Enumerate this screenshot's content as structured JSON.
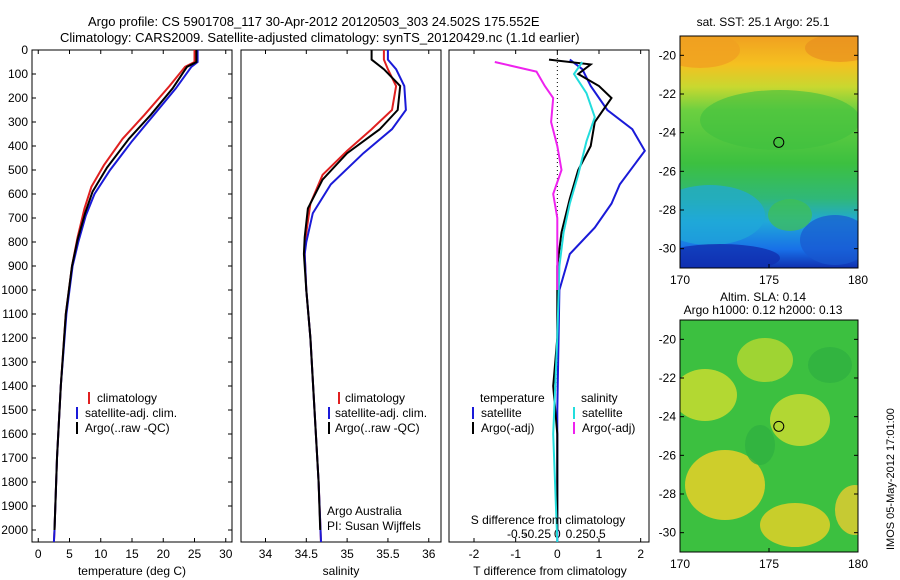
{
  "header": {
    "line1": "Argo profile: CS 5901708_117 30-Apr-2012 20120503_303 24.502S 175.552E",
    "line2": "Climatology: CARS2009. Satellite-adjusted climatology: synTS_20120429.nc (1.1d earlier)"
  },
  "side_text": "IMOS 05-May-2012 17:01:00",
  "colors": {
    "climatology": "#e02020",
    "satellite": "#1a1ad8",
    "argo": "#000000",
    "sal_sat": "#22dddd",
    "sal_argo": "#ee22ee"
  },
  "chart_data": [
    {
      "id": "temperature",
      "type": "line",
      "xlabel": "temperature (deg C)",
      "xlim": [
        -1,
        31
      ],
      "xticks": [
        "0",
        "5",
        "10",
        "15",
        "20",
        "25",
        "30"
      ],
      "xtick_values": [
        0,
        5,
        10,
        15,
        20,
        25,
        30
      ],
      "ylim": [
        0,
        2050
      ],
      "yticks": [
        "0",
        "100",
        "200",
        "300",
        "400",
        "500",
        "600",
        "700",
        "800",
        "900",
        "1000",
        "1100",
        "1200",
        "1300",
        "1400",
        "1500",
        "1600",
        "1700",
        "1800",
        "1900",
        "2000"
      ],
      "legend": [
        "climatology",
        "satellite-adj. clim.",
        "Argo(..raw -QC)"
      ],
      "series": [
        {
          "name": "climatology",
          "color": "#e02020",
          "points": [
            [
              25,
              0
            ],
            [
              25,
              50
            ],
            [
              23.5,
              70
            ],
            [
              21,
              150
            ],
            [
              17,
              270
            ],
            [
              13.5,
              370
            ],
            [
              10.5,
              480
            ],
            [
              8.5,
              570
            ],
            [
              7.4,
              660
            ],
            [
              6.3,
              780
            ],
            [
              5.4,
              900
            ],
            [
              4.4,
              1100
            ],
            [
              3.6,
              1400
            ],
            [
              3,
              1700
            ],
            [
              2.6,
              2000
            ],
            [
              2.5,
              2050
            ]
          ]
        },
        {
          "name": "satellite-adj. clim.",
          "color": "#1a1ad8",
          "points": [
            [
              25.5,
              0
            ],
            [
              25.5,
              50
            ],
            [
              24.5,
              70
            ],
            [
              22,
              160
            ],
            [
              18.5,
              270
            ],
            [
              15,
              380
            ],
            [
              11.5,
              500
            ],
            [
              9,
              600
            ],
            [
              7.6,
              690
            ],
            [
              6.4,
              800
            ],
            [
              5.5,
              900
            ],
            [
              4.5,
              1100
            ],
            [
              3.6,
              1400
            ],
            [
              3,
              1700
            ],
            [
              2.6,
              2000
            ],
            [
              2.5,
              2050
            ]
          ]
        },
        {
          "name": "Argo(..raw -QC)",
          "color": "#000000",
          "points": [
            [
              25.3,
              0
            ],
            [
              25.3,
              50
            ],
            [
              23.8,
              70
            ],
            [
              21.5,
              160
            ],
            [
              18,
              270
            ],
            [
              14.5,
              370
            ],
            [
              11,
              490
            ],
            [
              8.7,
              590
            ],
            [
              7.5,
              680
            ],
            [
              6.3,
              790
            ],
            [
              5.4,
              900
            ],
            [
              4.4,
              1100
            ],
            [
              3.6,
              1400
            ],
            [
              3,
              1700
            ],
            [
              2.6,
              2000
            ]
          ]
        }
      ]
    },
    {
      "id": "salinity",
      "type": "line",
      "xlabel": "salinity",
      "xlim": [
        33.7,
        36.15
      ],
      "xticks": [
        "34",
        "34.5",
        "35",
        "35.5",
        "36"
      ],
      "xtick_values": [
        34,
        34.5,
        35,
        35.5,
        36
      ],
      "ylim": [
        0,
        2050
      ],
      "legend": [
        "climatology",
        "satellite-adj. clim.",
        "Argo(..raw -QC)"
      ],
      "annotation": [
        "Argo Australia",
        "PI: Susan Wijffels"
      ],
      "series": [
        {
          "name": "climatology",
          "color": "#e02020",
          "points": [
            [
              35.45,
              0
            ],
            [
              35.45,
              40
            ],
            [
              35.5,
              80
            ],
            [
              35.6,
              150
            ],
            [
              35.55,
              250
            ],
            [
              35.3,
              330
            ],
            [
              35.0,
              420
            ],
            [
              34.7,
              520
            ],
            [
              34.55,
              640
            ],
            [
              34.5,
              760
            ],
            [
              34.48,
              850
            ],
            [
              34.5,
              1000
            ],
            [
              34.55,
              1200
            ],
            [
              34.6,
              1500
            ],
            [
              34.65,
              1800
            ],
            [
              34.68,
              2050
            ]
          ]
        },
        {
          "name": "satellite-adj. clim.",
          "color": "#1a1ad8",
          "points": [
            [
              35.5,
              0
            ],
            [
              35.5,
              40
            ],
            [
              35.6,
              80
            ],
            [
              35.7,
              150
            ],
            [
              35.72,
              250
            ],
            [
              35.55,
              330
            ],
            [
              35.2,
              430
            ],
            [
              34.8,
              560
            ],
            [
              34.58,
              680
            ],
            [
              34.5,
              800
            ],
            [
              34.48,
              850
            ],
            [
              34.5,
              1000
            ],
            [
              34.55,
              1200
            ],
            [
              34.6,
              1500
            ],
            [
              34.65,
              1800
            ],
            [
              34.68,
              2050
            ]
          ]
        },
        {
          "name": "Argo(..raw -QC)",
          "color": "#000000",
          "points": [
            [
              35.3,
              0
            ],
            [
              35.3,
              40
            ],
            [
              35.45,
              80
            ],
            [
              35.65,
              150
            ],
            [
              35.62,
              250
            ],
            [
              35.4,
              330
            ],
            [
              35.0,
              430
            ],
            [
              34.7,
              540
            ],
            [
              34.52,
              660
            ],
            [
              34.48,
              780
            ],
            [
              34.47,
              850
            ],
            [
              34.5,
              1000
            ],
            [
              34.55,
              1200
            ],
            [
              34.6,
              1500
            ],
            [
              34.65,
              1800
            ],
            [
              34.67,
              2000
            ]
          ]
        }
      ]
    },
    {
      "id": "difference",
      "type": "line",
      "xlabel": "T difference from climatology",
      "xlabel_top": "S difference from climatology",
      "xlim": [
        -2.6,
        2.2
      ],
      "xticks_T": [
        "-2",
        "-1",
        "0",
        "1",
        "2"
      ],
      "xticks_T_values": [
        -2,
        -1,
        0,
        1,
        2
      ],
      "xticks_S": [
        "-0.5",
        "-0.25",
        "0",
        "0.25",
        "0.5"
      ],
      "xticks_S_values": [
        -0.5,
        -0.25,
        0,
        0.25,
        0.5
      ],
      "legend_titles": [
        "temperature",
        "salinity"
      ],
      "legend": [
        "satellite",
        "Argo(-adj)",
        "satellite",
        "Argo(-adj)"
      ],
      "series": [
        {
          "name": "satellite",
          "group": "temperature",
          "color": "#1a1ad8",
          "points": [
            [
              0.3,
              40
            ],
            [
              0.6,
              80
            ],
            [
              0.8,
              150
            ],
            [
              1.2,
              250
            ],
            [
              1.8,
              330
            ],
            [
              2.1,
              420
            ],
            [
              1.5,
              560
            ],
            [
              1.3,
              640
            ],
            [
              0.9,
              740
            ],
            [
              0.3,
              850
            ],
            [
              0.05,
              1000
            ],
            [
              0,
              1500
            ],
            [
              0,
              2050
            ]
          ]
        },
        {
          "name": "Argo(-adj)",
          "group": "temperature",
          "color": "#000000",
          "points": [
            [
              -0.2,
              40
            ],
            [
              0.8,
              60
            ],
            [
              0.5,
              100
            ],
            [
              1.0,
              150
            ],
            [
              1.3,
              200
            ],
            [
              0.9,
              300
            ],
            [
              0.8,
              400
            ],
            [
              0.5,
              500
            ],
            [
              0.3,
              620
            ],
            [
              0.1,
              760
            ],
            [
              0,
              900
            ],
            [
              0,
              1200
            ],
            [
              -0.1,
              1400
            ],
            [
              0,
              1600
            ],
            [
              0,
              2000
            ]
          ]
        },
        {
          "name": "satellite",
          "group": "salinity",
          "color": "#22dddd",
          "points": [
            [
              0.6,
              50
            ],
            [
              0.4,
              100
            ],
            [
              0.7,
              180
            ],
            [
              0.9,
              280
            ],
            [
              0.7,
              380
            ],
            [
              0.5,
              520
            ],
            [
              0.3,
              640
            ],
            [
              0.15,
              760
            ],
            [
              0.05,
              900
            ],
            [
              0,
              1200
            ],
            [
              -0.1,
              1600
            ],
            [
              0,
              2050
            ]
          ]
        },
        {
          "name": "Argo(-adj)",
          "group": "salinity",
          "color": "#ee22ee",
          "points": [
            [
              -1.5,
              50
            ],
            [
              -0.5,
              90
            ],
            [
              -0.3,
              150
            ],
            [
              -0.1,
              200
            ],
            [
              -0.15,
              300
            ],
            [
              0,
              400
            ],
            [
              0.1,
              500
            ],
            [
              -0.1,
              600
            ],
            [
              0,
              700
            ],
            [
              0,
              800
            ],
            [
              0,
              1000
            ]
          ]
        }
      ]
    },
    {
      "id": "sst-map",
      "type": "heatmap",
      "title": "sat. SST: 25.1  Argo: 25.1",
      "xlim": [
        170,
        180
      ],
      "ylim": [
        -31,
        -19
      ],
      "xticks": [
        "170",
        "175",
        "180"
      ],
      "xtick_values": [
        170,
        175,
        180
      ],
      "yticks": [
        "-20",
        "-22",
        "-24",
        "-26",
        "-28",
        "-30"
      ],
      "ytick_values": [
        -20,
        -22,
        -24,
        -26,
        -28,
        -30
      ],
      "marker": [
        175.55,
        -24.5
      ]
    },
    {
      "id": "sla-map",
      "type": "heatmap",
      "title": "Altim. SLA: 0.14",
      "subtitle": "Argo h1000: 0.12 h2000: 0.13",
      "xlim": [
        170,
        180
      ],
      "ylim": [
        -31,
        -19
      ],
      "xticks": [
        "170",
        "175",
        "180"
      ],
      "xtick_values": [
        170,
        175,
        180
      ],
      "yticks": [
        "-20",
        "-22",
        "-24",
        "-26",
        "-28",
        "-30"
      ],
      "ytick_values": [
        -20,
        -22,
        -24,
        -26,
        -28,
        -30
      ],
      "marker": [
        175.55,
        -24.5
      ]
    }
  ]
}
